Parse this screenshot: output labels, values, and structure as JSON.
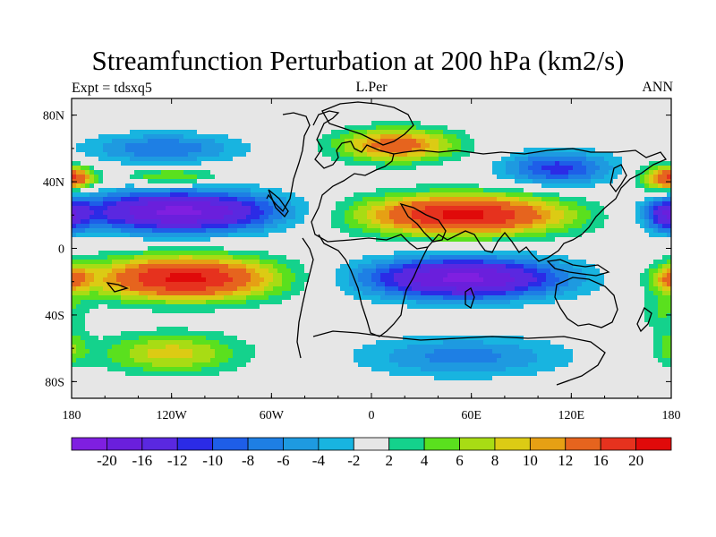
{
  "header": {
    "title": "Streamfunction Perturbation at 200 hPa (km2/s)",
    "left_string": "Expt = tdsxq5",
    "center_string": "L.Per",
    "right_string": "ANN"
  },
  "chart_data": {
    "type": "heatmap",
    "variable": "Streamfunction Perturbation",
    "level": "200 hPa",
    "units": "km2/s",
    "x_range": [
      -180,
      180
    ],
    "y_range": [
      -90,
      90
    ],
    "x_ticks": [
      {
        "value": -180,
        "label": "180"
      },
      {
        "value": -120,
        "label": "120W"
      },
      {
        "value": -60,
        "label": "60W"
      },
      {
        "value": 0,
        "label": "0"
      },
      {
        "value": 60,
        "label": "60E"
      },
      {
        "value": 120,
        "label": "120E"
      },
      {
        "value": 180,
        "label": "180"
      }
    ],
    "y_ticks": [
      {
        "value": 80,
        "label": "80N"
      },
      {
        "value": 40,
        "label": "40N"
      },
      {
        "value": 0,
        "label": "0"
      },
      {
        "value": -40,
        "label": "40S"
      },
      {
        "value": -80,
        "label": "80S"
      }
    ],
    "contour_levels": [
      -20,
      -16,
      -12,
      -10,
      -8,
      -6,
      -4,
      -2,
      2,
      4,
      6,
      8,
      10,
      12,
      16,
      20
    ],
    "colorbar_labels": [
      "-20",
      "-16",
      "-12",
      "-10",
      "-8",
      "-6",
      "-4",
      "-2",
      "2",
      "4",
      "6",
      "8",
      "10",
      "12",
      "16",
      "20"
    ],
    "colors": [
      "#7f1fe0",
      "#6a1fdc",
      "#5a28e0",
      "#2b2be6",
      "#1e5ee8",
      "#1e7fe4",
      "#1e9ae0",
      "#18b4e0",
      "#e6e6e6",
      "#14d28c",
      "#5ae01e",
      "#a8dc14",
      "#dccb14",
      "#e6a014",
      "#e6641e",
      "#e6321e",
      "#e00a0a"
    ],
    "centers": [
      {
        "lon": -115,
        "lat": 22,
        "value": -21,
        "dlon": 60,
        "dlat": 12
      },
      {
        "lon": 55,
        "lat": 20,
        "value": 21,
        "dlon": 62,
        "dlat": 12
      },
      {
        "lon": -112,
        "lat": -18,
        "value": 21,
        "dlon": 55,
        "dlat": 13
      },
      {
        "lon": 55,
        "lat": -18,
        "value": -21,
        "dlon": 58,
        "dlat": 12
      },
      {
        "lon": -125,
        "lat": 60,
        "value": -8,
        "dlon": 45,
        "dlat": 9
      },
      {
        "lon": -120,
        "lat": 43,
        "value": 7,
        "dlon": 28,
        "dlat": 5
      },
      {
        "lon": -178,
        "lat": 42,
        "value": 10,
        "dlon": 12,
        "dlat": 6
      },
      {
        "lon": 15,
        "lat": 62,
        "value": 14,
        "dlon": 35,
        "dlat": 10
      },
      {
        "lon": 112,
        "lat": 48,
        "value": -11,
        "dlon": 32,
        "dlat": 10
      },
      {
        "lon": 175,
        "lat": 42,
        "value": 9,
        "dlon": 16,
        "dlat": 9
      },
      {
        "lon": 180,
        "lat": 20,
        "value": -6,
        "dlon": 12,
        "dlat": 10
      },
      {
        "lon": -185,
        "lat": 20,
        "value": -6,
        "dlon": 12,
        "dlat": 10
      },
      {
        "lon": -120,
        "lat": -63,
        "value": 9,
        "dlon": 42,
        "dlat": 12
      },
      {
        "lon": -185,
        "lat": -38,
        "value": 4,
        "dlon": 14,
        "dlat": 12
      },
      {
        "lon": 55,
        "lat": -65,
        "value": -7,
        "dlon": 60,
        "dlat": 12
      },
      {
        "lon": 180,
        "lat": -18,
        "value": 10,
        "dlon": 11,
        "dlat": 8
      },
      {
        "lon": 180,
        "lat": -60,
        "value": 5,
        "dlon": 10,
        "dlat": 10
      }
    ]
  }
}
